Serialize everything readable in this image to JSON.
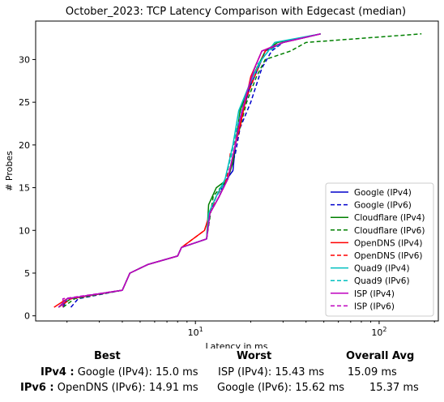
{
  "chart_data": {
    "type": "line",
    "title": "October_2023: TCP Latency Comparison with Edgecast (median)",
    "xlabel": "Latency in ms",
    "ylabel": "# Probes",
    "x_scale": "log",
    "xlim": [
      1.35,
      210
    ],
    "ylim": [
      -0.6,
      34.5
    ],
    "x_ticks": [
      {
        "value": 10,
        "label": "10^1"
      },
      {
        "value": 100,
        "label": "10^2"
      }
    ],
    "y_ticks": [
      0,
      5,
      10,
      15,
      20,
      25,
      30
    ],
    "grid": false,
    "legend_position": "lower right",
    "series": [
      {
        "name": "Google (IPv4)",
        "color": "#0000cc",
        "dash": "solid",
        "points": [
          [
            1.9,
            1
          ],
          [
            2.0,
            2
          ],
          [
            4.0,
            3
          ],
          [
            4.4,
            5
          ],
          [
            5.5,
            6
          ],
          [
            8.0,
            7
          ],
          [
            8.4,
            8
          ],
          [
            11.5,
            9
          ],
          [
            12.0,
            12
          ],
          [
            13.5,
            14
          ],
          [
            14.8,
            16
          ],
          [
            16.0,
            17
          ],
          [
            16.5,
            20
          ],
          [
            17.5,
            23
          ],
          [
            20.0,
            27
          ],
          [
            22.0,
            29
          ],
          [
            24.0,
            31
          ],
          [
            30.0,
            32
          ],
          [
            48.0,
            33
          ]
        ]
      },
      {
        "name": "Google (IPv6)",
        "color": "#0000cc",
        "dash": "dashed",
        "points": [
          [
            2.1,
            1
          ],
          [
            2.3,
            2
          ],
          [
            4.0,
            3
          ],
          [
            4.4,
            5
          ],
          [
            5.5,
            6
          ],
          [
            8.0,
            7
          ],
          [
            8.4,
            8
          ],
          [
            11.5,
            9
          ],
          [
            12.0,
            12
          ],
          [
            13.0,
            14
          ],
          [
            15.0,
            16
          ],
          [
            16.5,
            19
          ],
          [
            17.5,
            22
          ],
          [
            20.0,
            25
          ],
          [
            23.0,
            29
          ],
          [
            26.0,
            31
          ],
          [
            30.0,
            32
          ],
          [
            48.0,
            33
          ]
        ]
      },
      {
        "name": "Cloudflare (IPv4)",
        "color": "#008000",
        "dash": "solid",
        "points": [
          [
            1.8,
            1
          ],
          [
            2.1,
            2
          ],
          [
            4.0,
            3
          ],
          [
            4.4,
            5
          ],
          [
            5.5,
            6
          ],
          [
            8.0,
            7
          ],
          [
            8.4,
            8
          ],
          [
            11.5,
            9
          ],
          [
            11.8,
            13
          ],
          [
            13.0,
            15
          ],
          [
            15.0,
            16
          ],
          [
            16.0,
            18
          ],
          [
            17.5,
            24
          ],
          [
            19.0,
            26
          ],
          [
            20.5,
            28
          ],
          [
            24.0,
            31
          ],
          [
            28.0,
            32
          ],
          [
            48.0,
            33
          ]
        ]
      },
      {
        "name": "Cloudflare (IPv6)",
        "color": "#008000",
        "dash": "dashed",
        "points": [
          [
            1.9,
            1
          ],
          [
            2.2,
            2
          ],
          [
            4.0,
            3
          ],
          [
            4.4,
            5
          ],
          [
            5.5,
            6
          ],
          [
            8.0,
            7
          ],
          [
            8.4,
            8
          ],
          [
            11.5,
            9
          ],
          [
            12.5,
            14
          ],
          [
            15.0,
            16
          ],
          [
            16.5,
            20
          ],
          [
            19.0,
            25
          ],
          [
            21.5,
            28
          ],
          [
            24.0,
            30
          ],
          [
            33.0,
            31
          ],
          [
            40.0,
            32
          ],
          [
            170.0,
            33
          ]
        ]
      },
      {
        "name": "OpenDNS (IPv4)",
        "color": "#ff0000",
        "dash": "solid",
        "points": [
          [
            1.7,
            1
          ],
          [
            2.0,
            2
          ],
          [
            4.0,
            3
          ],
          [
            4.4,
            5
          ],
          [
            5.5,
            6
          ],
          [
            8.0,
            7
          ],
          [
            8.4,
            8
          ],
          [
            11.2,
            10
          ],
          [
            12.0,
            12
          ],
          [
            13.5,
            14
          ],
          [
            15.0,
            16
          ],
          [
            16.5,
            20
          ],
          [
            17.8,
            23
          ],
          [
            20.0,
            28
          ],
          [
            23.0,
            31
          ],
          [
            30.0,
            32
          ],
          [
            48.0,
            33
          ]
        ]
      },
      {
        "name": "OpenDNS (IPv6)",
        "color": "#ff0000",
        "dash": "dashed",
        "points": [
          [
            1.8,
            1
          ],
          [
            2.1,
            2
          ],
          [
            4.0,
            3
          ],
          [
            4.4,
            5
          ],
          [
            5.5,
            6
          ],
          [
            8.0,
            7
          ],
          [
            8.4,
            8
          ],
          [
            11.2,
            10
          ],
          [
            12.0,
            12
          ],
          [
            13.0,
            14
          ],
          [
            14.8,
            16
          ],
          [
            15.5,
            19
          ],
          [
            17.5,
            22
          ],
          [
            18.5,
            25
          ],
          [
            21.0,
            28
          ],
          [
            24.0,
            31
          ],
          [
            30.0,
            32
          ],
          [
            48.0,
            33
          ]
        ]
      },
      {
        "name": "Quad9 (IPv4)",
        "color": "#00bfbf",
        "dash": "solid",
        "points": [
          [
            1.8,
            1
          ],
          [
            2.0,
            2
          ],
          [
            4.0,
            3
          ],
          [
            4.4,
            5
          ],
          [
            5.5,
            6
          ],
          [
            8.0,
            7
          ],
          [
            8.4,
            8
          ],
          [
            11.5,
            9
          ],
          [
            11.8,
            12
          ],
          [
            13.0,
            14
          ],
          [
            14.5,
            16
          ],
          [
            16.0,
            20
          ],
          [
            17.2,
            24
          ],
          [
            20.5,
            28
          ],
          [
            23.0,
            30
          ],
          [
            27.0,
            32
          ],
          [
            48.0,
            33
          ]
        ]
      },
      {
        "name": "Quad9 (IPv6)",
        "color": "#00bfbf",
        "dash": "dashed",
        "points": [
          [
            1.8,
            1
          ],
          [
            2.0,
            2
          ],
          [
            4.0,
            3
          ],
          [
            4.4,
            5
          ],
          [
            5.5,
            6
          ],
          [
            8.0,
            7
          ],
          [
            8.4,
            8
          ],
          [
            11.5,
            9
          ],
          [
            12.0,
            12
          ],
          [
            13.5,
            14
          ],
          [
            14.5,
            16
          ],
          [
            15.8,
            19
          ],
          [
            16.8,
            22
          ],
          [
            19.0,
            26
          ],
          [
            21.0,
            29
          ],
          [
            25.0,
            31
          ],
          [
            30.0,
            32
          ],
          [
            48.0,
            33
          ]
        ]
      },
      {
        "name": "ISP (IPv4)",
        "color": "#bf00bf",
        "dash": "solid",
        "points": [
          [
            1.8,
            1
          ],
          [
            2.0,
            2
          ],
          [
            4.0,
            3
          ],
          [
            4.4,
            5
          ],
          [
            5.5,
            6
          ],
          [
            8.0,
            7
          ],
          [
            8.4,
            8
          ],
          [
            11.5,
            9
          ],
          [
            12.0,
            12
          ],
          [
            13.5,
            14
          ],
          [
            15.0,
            16
          ],
          [
            16.5,
            20
          ],
          [
            17.5,
            23
          ],
          [
            19.0,
            26
          ],
          [
            21.0,
            29
          ],
          [
            23.0,
            31
          ],
          [
            30.0,
            32
          ],
          [
            48.0,
            33
          ]
        ]
      },
      {
        "name": "ISP (IPv6)",
        "color": "#bf00bf",
        "dash": "dashed",
        "points": [
          [
            1.9,
            1
          ],
          [
            1.9,
            2
          ],
          [
            4.0,
            3
          ],
          [
            4.4,
            5
          ],
          [
            5.5,
            6
          ],
          [
            8.0,
            7
          ],
          [
            8.4,
            8
          ],
          [
            11.5,
            9
          ],
          [
            12.0,
            12
          ],
          [
            13.5,
            14
          ],
          [
            15.0,
            16
          ],
          [
            16.5,
            20
          ],
          [
            17.5,
            23
          ],
          [
            19.0,
            26
          ],
          [
            21.0,
            29
          ],
          [
            23.0,
            31
          ],
          [
            30.0,
            32
          ],
          [
            48.0,
            33
          ]
        ]
      }
    ]
  },
  "summary": {
    "col_best": "Best",
    "col_worst": "Worst",
    "col_avg": "Overall Avg",
    "rows": [
      {
        "key": "IPv4 :",
        "best": "Google (IPv4): 15.0 ms",
        "worst": "ISP (IPv4): 15.43 ms",
        "avg": "15.09 ms"
      },
      {
        "key": "IPv6 :",
        "best": "OpenDNS (IPv6): 14.91 ms",
        "worst": "Google (IPv6): 15.62 ms",
        "avg": "15.37 ms"
      }
    ]
  }
}
